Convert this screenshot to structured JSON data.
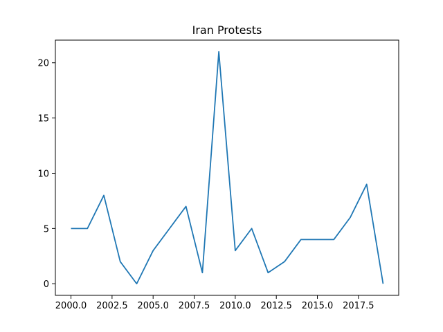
{
  "chart_data": {
    "type": "line",
    "title": "Iran Protests",
    "xlabel": "",
    "ylabel": "",
    "x": [
      2000,
      2001,
      2002,
      2003,
      2004,
      2005,
      2006,
      2007,
      2008,
      2009,
      2010,
      2011,
      2012,
      2013,
      2014,
      2015,
      2016,
      2017,
      2018,
      2019
    ],
    "series": [
      {
        "values": [
          5,
          5,
          8,
          2,
          0,
          3,
          5,
          7,
          1,
          21,
          3,
          5,
          1,
          2,
          4,
          4,
          4,
          6,
          9,
          0
        ],
        "color": "#1f77b4"
      }
    ],
    "xlim": [
      1999.05,
      2019.95
    ],
    "ylim": [
      -1.05,
      22.05
    ],
    "xticks": [
      2000.0,
      2002.5,
      2005.0,
      2007.5,
      2010.0,
      2012.5,
      2015.0,
      2017.5
    ],
    "xtick_labels": [
      "2000.0",
      "2002.5",
      "2005.0",
      "2007.5",
      "2010.0",
      "2012.5",
      "2015.0",
      "2017.5"
    ],
    "yticks": [
      0,
      5,
      10,
      15,
      20
    ],
    "ytick_labels": [
      "0",
      "5",
      "10",
      "15",
      "20"
    ],
    "grid": false,
    "legend": "none"
  }
}
